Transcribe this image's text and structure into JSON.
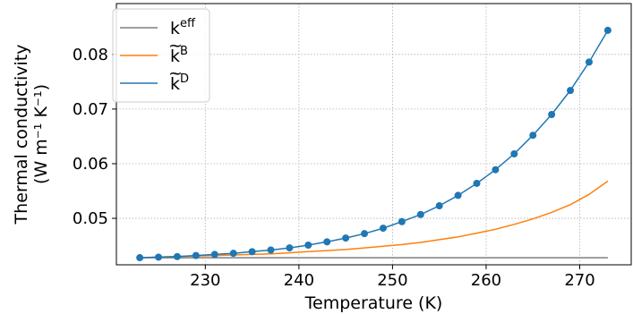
{
  "chart_data": {
    "type": "line",
    "xlabel": "Temperature (K)",
    "ylabel_line1": "Thermal conductivity",
    "ylabel_line2": "(W m⁻¹ K⁻¹)",
    "xlim": [
      220.5,
      275.5
    ],
    "ylim": [
      0.0415,
      0.0893
    ],
    "xticks": [
      230,
      240,
      250,
      260,
      270
    ],
    "yticks": [
      0.05,
      0.06,
      0.07,
      0.08
    ],
    "xtick_labels": [
      "230",
      "240",
      "250",
      "260",
      "270"
    ],
    "ytick_labels": [
      "0.05",
      "0.06",
      "0.07",
      "0.08"
    ],
    "grid": true,
    "legend_position": "top-left",
    "x": [
      223,
      225,
      227,
      229,
      231,
      233,
      235,
      237,
      239,
      241,
      243,
      245,
      247,
      249,
      251,
      253,
      255,
      257,
      259,
      261,
      263,
      265,
      267,
      269,
      271,
      273
    ],
    "series": [
      {
        "name": "k",
        "name_sup": "eff",
        "tilde": false,
        "color": "#7f7f7f",
        "markers": false,
        "values": [
          0.0428,
          0.0428,
          0.0428,
          0.0428,
          0.0428,
          0.0428,
          0.0428,
          0.0428,
          0.0428,
          0.0428,
          0.0428,
          0.0428,
          0.0428,
          0.0428,
          0.0428,
          0.0428,
          0.0428,
          0.0428,
          0.0428,
          0.0428,
          0.0428,
          0.0428,
          0.0428,
          0.0428,
          0.0428,
          0.0428
        ]
      },
      {
        "name": "k",
        "name_sup": "B",
        "tilde": true,
        "color": "#ff7f0e",
        "markers": false,
        "values": [
          0.0428,
          0.0429,
          0.043,
          0.0431,
          0.0432,
          0.0433,
          0.0434,
          0.0435,
          0.0437,
          0.0439,
          0.0441,
          0.0443,
          0.0446,
          0.0449,
          0.0452,
          0.0456,
          0.0461,
          0.0466,
          0.0473,
          0.048,
          0.0489,
          0.0499,
          0.0511,
          0.0525,
          0.0544,
          0.0568
        ]
      },
      {
        "name": "k",
        "name_sup": "D",
        "tilde": true,
        "color": "#1f77b4",
        "markers": true,
        "values": [
          0.0428,
          0.0429,
          0.043,
          0.0432,
          0.0434,
          0.0436,
          0.0439,
          0.0442,
          0.0446,
          0.0451,
          0.0457,
          0.0464,
          0.0472,
          0.0482,
          0.0494,
          0.0507,
          0.0523,
          0.0542,
          0.0564,
          0.0589,
          0.0618,
          0.0652,
          0.069,
          0.0734,
          0.0786,
          0.0844
        ]
      }
    ]
  }
}
